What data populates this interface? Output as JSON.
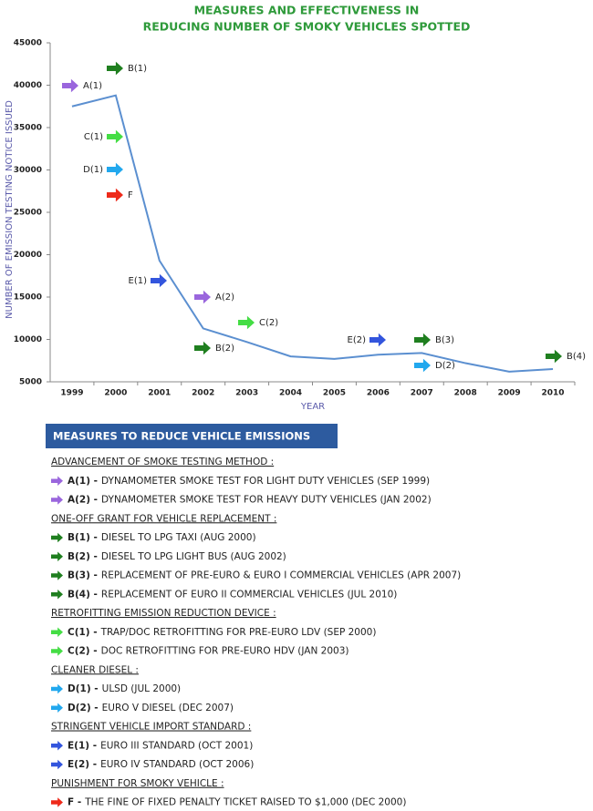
{
  "chart_data": {
    "type": "line",
    "title": [
      "MEASURES AND EFFECTIVENESS IN",
      "REDUCING NUMBER OF SMOKY VEHICLES SPOTTED"
    ],
    "y_label": "NUMBER OF EMISSION TESTING NOTICE ISSUED",
    "x_label": "YEAR",
    "categories": [
      "1999",
      "2000",
      "2001",
      "2002",
      "2003",
      "2004",
      "2005",
      "2006",
      "2007",
      "2008",
      "2009",
      "2010"
    ],
    "series": [
      {
        "name": "Emission testing notices",
        "color": "#5b8fd0",
        "values": [
          37500,
          38800,
          19300,
          11300,
          9700,
          8000,
          7700,
          8200,
          8400,
          7200,
          6200,
          6500
        ]
      }
    ],
    "ylim": [
      5000,
      45000
    ],
    "yticks": [
      5000,
      10000,
      15000,
      20000,
      25000,
      30000,
      35000,
      40000,
      45000
    ],
    "annotations": [
      {
        "text": "A(1)",
        "color": "#9a66dd"
      },
      {
        "text": "B(1)",
        "color": "#1f7f1f"
      },
      {
        "text": "C(1)",
        "color": "#44dd44"
      },
      {
        "text": "D(1)",
        "color": "#22a8ee"
      },
      {
        "text": "F",
        "color": "#ee2a1a"
      },
      {
        "text": "E(1)",
        "color": "#3355dd"
      },
      {
        "text": "A(2)",
        "color": "#9a66dd"
      },
      {
        "text": "C(2)",
        "color": "#44dd44"
      },
      {
        "text": "B(2)",
        "color": "#1f7f1f"
      },
      {
        "text": "E(2)",
        "color": "#3355dd"
      },
      {
        "text": "B(3)",
        "color": "#1f7f1f"
      },
      {
        "text": "D(2)",
        "color": "#22a8ee"
      },
      {
        "text": "B(4)",
        "color": "#1f7f1f"
      }
    ]
  },
  "measures": {
    "title": "MEASURES TO REDUCE VEHICLE EMISSIONS",
    "sections": [
      {
        "heading": "ADVANCEMENT OF SMOKE TESTING METHOD :",
        "color": "#9a66dd",
        "items": [
          {
            "code": "A(1) -",
            "text": "DYNAMOMETER SMOKE TEST FOR LIGHT DUTY VEHICLES (SEP 1999)"
          },
          {
            "code": "A(2) -",
            "text": "DYNAMOMETER SMOKE TEST FOR HEAVY DUTY VEHICLES (JAN 2002)"
          }
        ]
      },
      {
        "heading": "ONE-OFF GRANT FOR VEHICLE REPLACEMENT :",
        "color": "#1f7f1f",
        "items": [
          {
            "code": "B(1) -",
            "text": "DIESEL TO LPG TAXI (AUG 2000)"
          },
          {
            "code": "B(2) -",
            "text": "DIESEL TO LPG LIGHT BUS (AUG 2002)"
          },
          {
            "code": "B(3) -",
            "text": "REPLACEMENT OF PRE-EURO & EURO I COMMERCIAL VEHICLES (APR 2007)"
          },
          {
            "code": "B(4) -",
            "text": "REPLACEMENT OF EURO II COMMERCIAL VEHICLES (JUL 2010)"
          }
        ]
      },
      {
        "heading": "RETROFITTING EMISSION REDUCTION DEVICE :",
        "color": "#44dd44",
        "items": [
          {
            "code": "C(1) -",
            "text": "TRAP/DOC RETROFITTING FOR PRE-EURO LDV (SEP 2000)"
          },
          {
            "code": "C(2) -",
            "text": "DOC RETROFITTING FOR PRE-EURO HDV (JAN 2003)"
          }
        ]
      },
      {
        "heading": "CLEANER DIESEL :",
        "color": "#22a8ee",
        "items": [
          {
            "code": "D(1) -",
            "text": "ULSD (JUL 2000)"
          },
          {
            "code": "D(2) -",
            "text": "EURO V DIESEL (DEC 2007)"
          }
        ]
      },
      {
        "heading": "STRINGENT VEHICLE IMPORT STANDARD :",
        "color": "#3355dd",
        "items": [
          {
            "code": "E(1) -",
            "text": "EURO III STANDARD (OCT 2001)"
          },
          {
            "code": "E(2) -",
            "text": "EURO IV STANDARD (OCT 2006)"
          }
        ]
      },
      {
        "heading": "PUNISHMENT FOR SMOKY VEHICLE :",
        "color": "#ee2a1a",
        "items": [
          {
            "code": "F -",
            "text": "THE FINE OF FIXED PENALTY TICKET RAISED TO $1,000 (DEC 2000)"
          }
        ]
      }
    ]
  }
}
